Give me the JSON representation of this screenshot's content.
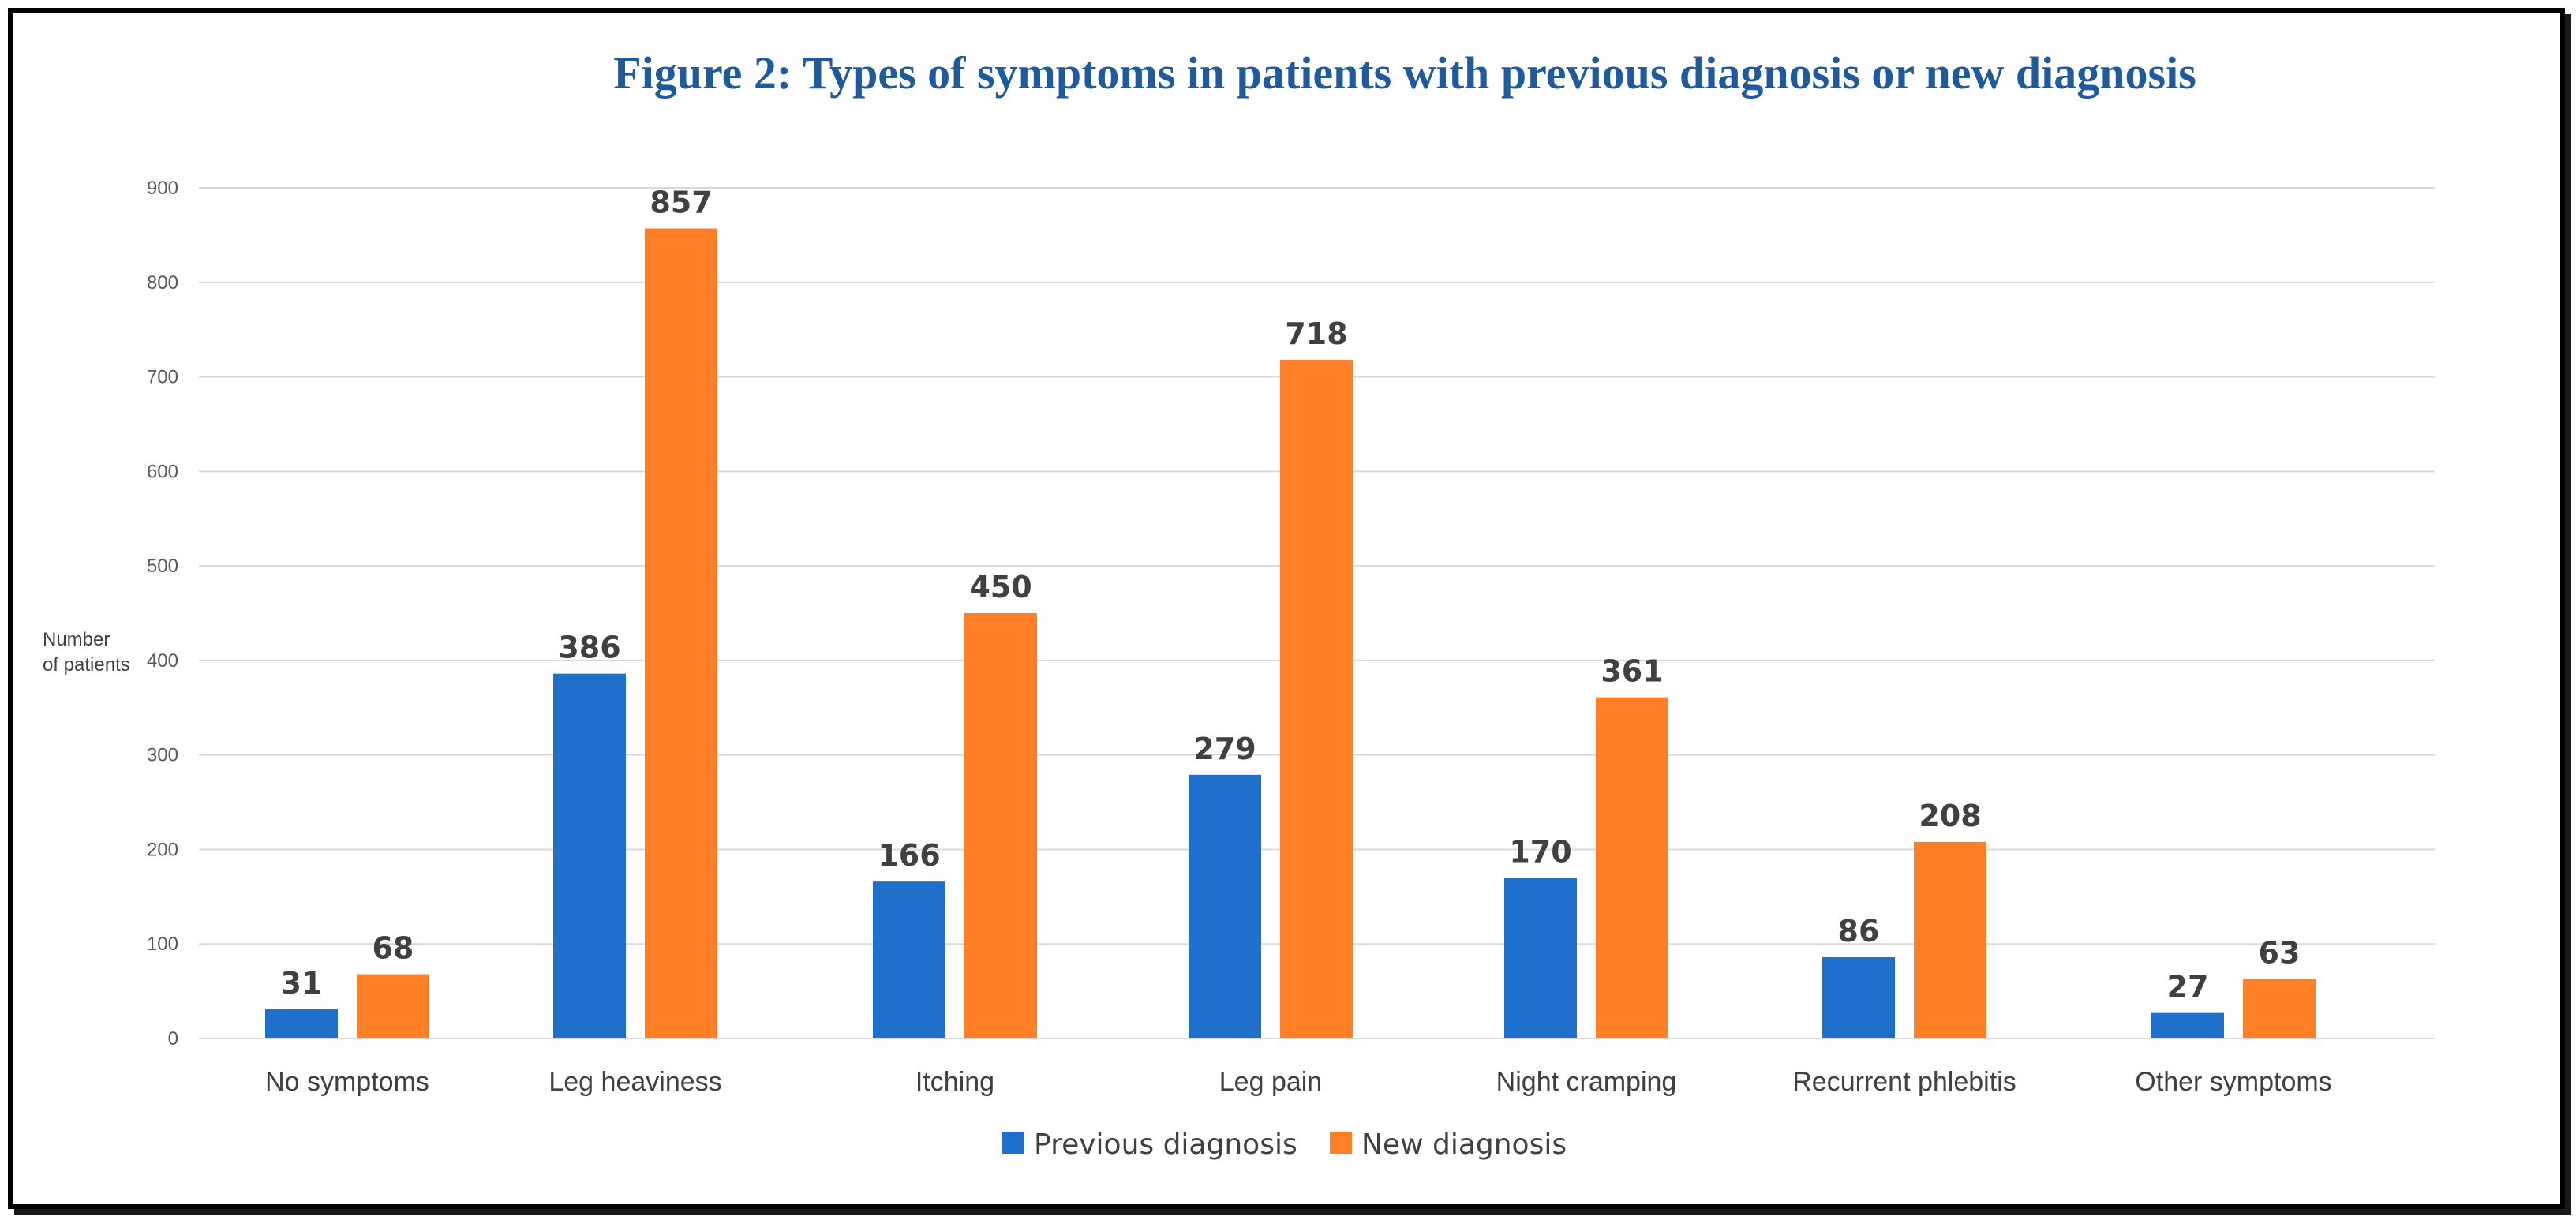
{
  "chart_data": {
    "type": "bar",
    "title": "Figure 2: Types of symptoms in patients with previous diagnosis or new diagnosis",
    "ylabel": [
      "Number",
      "of patients"
    ],
    "xlabel": "",
    "ylim": [
      0,
      900
    ],
    "yticks": [
      0,
      100,
      200,
      300,
      400,
      500,
      600,
      700,
      800,
      900
    ],
    "grid": true,
    "legend_position": "bottom",
    "categories": [
      "No symptoms",
      "Leg heaviness",
      "Itching",
      "Leg pain",
      "Night cramping",
      "Recurrent phlebitis",
      "Other symptoms"
    ],
    "series": [
      {
        "name": "Previous diagnosis",
        "color": "#1f6fcc",
        "values": [
          31,
          386,
          166,
          279,
          170,
          86,
          27
        ]
      },
      {
        "name": "New diagnosis",
        "color": "#ff7f27",
        "values": [
          68,
          857,
          450,
          718,
          361,
          208,
          63
        ]
      }
    ],
    "title_color": "#1f5a9c"
  }
}
